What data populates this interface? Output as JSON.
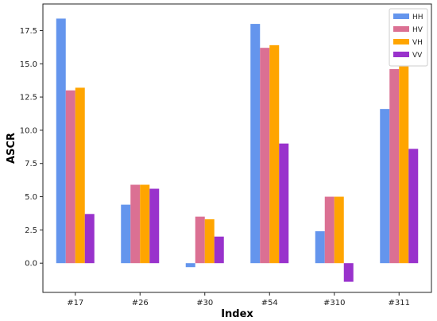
{
  "chart_data": {
    "type": "bar",
    "title": "",
    "xlabel": "Index",
    "ylabel": "ASCR",
    "categories": [
      "#17",
      "#26",
      "#30",
      "#54",
      "#310",
      "#311"
    ],
    "series": [
      {
        "name": "HH",
        "color": "#6495ED",
        "values": [
          18.4,
          4.4,
          -0.3,
          18.0,
          2.4,
          11.6
        ]
      },
      {
        "name": "HV",
        "color": "#DB7093",
        "values": [
          13.0,
          5.9,
          3.5,
          16.2,
          5.0,
          14.6
        ]
      },
      {
        "name": "VH",
        "color": "#FFA500",
        "values": [
          13.2,
          5.9,
          3.3,
          16.4,
          5.0,
          14.8
        ]
      },
      {
        "name": "VV",
        "color": "#9932CC",
        "values": [
          3.7,
          5.6,
          2.0,
          9.0,
          -1.4,
          8.6
        ]
      }
    ],
    "ylim": [
      -2.2,
      19.5
    ],
    "yticks": [
      "0.0",
      "2.5",
      "5.0",
      "7.5",
      "10.0",
      "12.5",
      "15.0",
      "17.5"
    ],
    "grid": false,
    "legend_position": "top-right"
  }
}
